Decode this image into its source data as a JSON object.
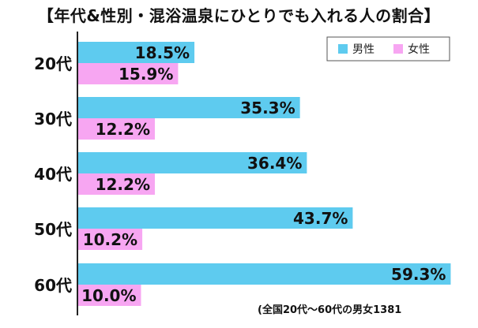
{
  "title": "【年代&性別・混浴温泉にひとりでも入れる人の割合】",
  "footnote": "(全国20代〜60代の男女1381",
  "colors": {
    "male": "#5ecbef",
    "female": "#f7a6f2"
  },
  "chart_data": {
    "type": "bar",
    "orientation": "horizontal",
    "categories": [
      "20代",
      "30代",
      "40代",
      "50代",
      "60代"
    ],
    "series": [
      {
        "name": "男性",
        "values": [
          18.5,
          35.3,
          36.4,
          43.7,
          59.3
        ],
        "labels": [
          "18.5%",
          "35.3%",
          "36.4%",
          "43.7%",
          "59.3%"
        ]
      },
      {
        "name": "女性",
        "values": [
          15.9,
          12.2,
          12.2,
          10.2,
          10.0
        ],
        "labels": [
          "15.9%",
          "12.2%",
          "12.2%",
          "10.2%",
          "10.0%"
        ]
      }
    ],
    "legend_position": "top-right",
    "grid": false
  }
}
